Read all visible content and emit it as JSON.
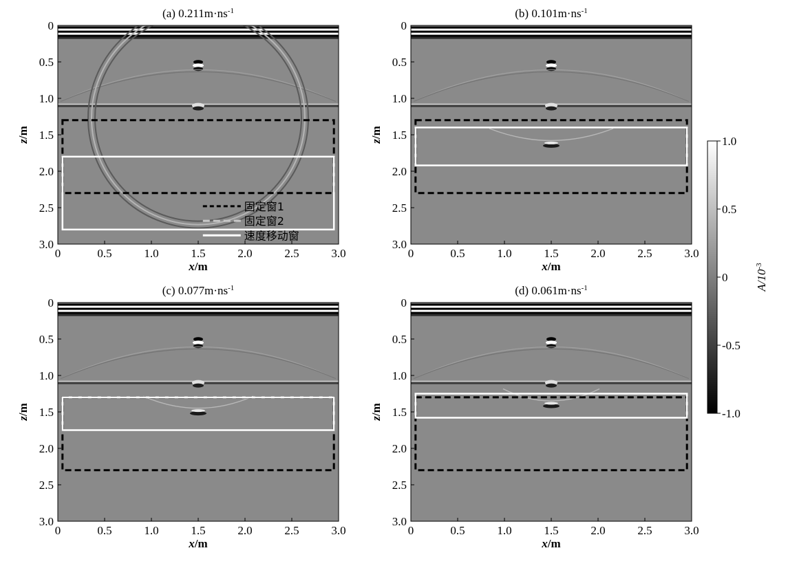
{
  "chart_data": [
    {
      "type": "heatmap",
      "title": "(a) 0.211m·ns",
      "title_sup": "-1",
      "xlabel": "x/m",
      "ylabel": "z/m",
      "xlim": [
        0,
        3.0
      ],
      "ylim": [
        0,
        3.0
      ],
      "y_inverted": true,
      "xticks": [
        "0",
        "0.5",
        "1.0",
        "1.5",
        "2.0",
        "2.5",
        "3.0"
      ],
      "yticks": [
        "0",
        "0.5",
        "1.0",
        "1.5",
        "2.0",
        "2.5",
        "3.0"
      ],
      "reflectors_z": [
        0.1,
        0.55,
        1.1
      ],
      "diffraction": {
        "x": 1.5,
        "z": 0.55
      },
      "fixed_window": {
        "x": [
          0.05,
          2.95
        ],
        "z": [
          1.3,
          2.3
        ]
      },
      "moving_window": {
        "x": [
          0.05,
          2.95
        ],
        "z": [
          1.8,
          2.8
        ]
      },
      "legend": [
        {
          "label": "固定窗1",
          "style": "black-dashed"
        },
        {
          "label": "固定窗2",
          "style": "gray-dashed"
        },
        {
          "label": "速度移动窗",
          "style": "white-solid"
        }
      ],
      "legend_position": "bottom-right"
    },
    {
      "type": "heatmap",
      "title": "(b) 0.101m·ns",
      "title_sup": "-1",
      "xlabel": "x/m",
      "ylabel": "z/m",
      "xlim": [
        0,
        3.0
      ],
      "ylim": [
        0,
        3.0
      ],
      "y_inverted": true,
      "xticks": [
        "0",
        "0.5",
        "1.0",
        "1.5",
        "2.0",
        "2.5",
        "3.0"
      ],
      "yticks": [
        "0",
        "0.5",
        "1.0",
        "1.5",
        "2.0",
        "2.5",
        "3.0"
      ],
      "reflectors_z": [
        0.1,
        0.55,
        1.1
      ],
      "diffraction": {
        "x": 1.5,
        "z": 1.65
      },
      "fixed_window": {
        "x": [
          0.05,
          2.95
        ],
        "z": [
          1.3,
          2.3
        ]
      },
      "moving_window": {
        "x": [
          0.05,
          2.95
        ],
        "z": [
          1.4,
          1.92
        ]
      }
    },
    {
      "type": "heatmap",
      "title": "(c) 0.077m·ns",
      "title_sup": "-1",
      "xlabel": "x/m",
      "ylabel": "z/m",
      "xlim": [
        0,
        3.0
      ],
      "ylim": [
        0,
        3.0
      ],
      "y_inverted": true,
      "xticks": [
        "0",
        "0.5",
        "1.0",
        "1.5",
        "2.0",
        "2.5",
        "3.0"
      ],
      "yticks": [
        "0",
        "0.5",
        "1.0",
        "1.5",
        "2.0",
        "2.5",
        "3.0"
      ],
      "reflectors_z": [
        0.1,
        0.55,
        1.1
      ],
      "diffraction": {
        "x": 1.5,
        "z": 1.52
      },
      "fixed_window": {
        "x": [
          0.05,
          2.95
        ],
        "z": [
          1.3,
          2.3
        ]
      },
      "moving_window": {
        "x": [
          0.05,
          2.95
        ],
        "z": [
          1.3,
          1.75
        ]
      }
    },
    {
      "type": "heatmap",
      "title": "(d) 0.061m·ns",
      "title_sup": "-1",
      "xlabel": "x/m",
      "ylabel": "z/m",
      "xlim": [
        0,
        3.0
      ],
      "ylim": [
        0,
        3.0
      ],
      "y_inverted": true,
      "xticks": [
        "0",
        "0.5",
        "1.0",
        "1.5",
        "2.0",
        "2.5",
        "3.0"
      ],
      "yticks": [
        "0",
        "0.5",
        "1.0",
        "1.5",
        "2.0",
        "2.5",
        "3.0"
      ],
      "reflectors_z": [
        0.1,
        0.55,
        1.1
      ],
      "diffraction": {
        "x": 1.5,
        "z": 1.42
      },
      "fixed_window": {
        "x": [
          0.05,
          2.95
        ],
        "z": [
          1.3,
          2.3
        ]
      },
      "moving_window": {
        "x": [
          0.05,
          2.95
        ],
        "z": [
          1.25,
          1.58
        ]
      }
    }
  ],
  "colorbar": {
    "label": "A/10",
    "label_sup": "-3",
    "range": [
      -1.0,
      1.0
    ],
    "ticks": [
      "1.0",
      "0.5",
      "0",
      "-0.5",
      "-1.0"
    ],
    "ticks_values": [
      1.0,
      0.5,
      0,
      -0.5,
      -1.0
    ],
    "colormap": "gray"
  }
}
